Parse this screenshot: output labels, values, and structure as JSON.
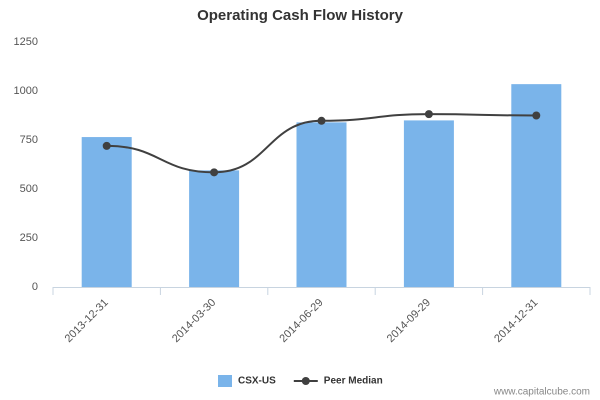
{
  "chart_data": {
    "type": "bar",
    "title": "Operating Cash Flow History",
    "categories": [
      "2013-12-31",
      "2014-03-30",
      "2014-06-29",
      "2014-09-29",
      "2014-12-31"
    ],
    "series": [
      {
        "name": "CSX-US",
        "type": "bar",
        "color": "#7ab4ea",
        "values": [
          765,
          595,
          840,
          850,
          1035
        ]
      },
      {
        "name": "Peer Median",
        "type": "line",
        "color": "#404040",
        "values": [
          720,
          585,
          848,
          882,
          875
        ]
      }
    ],
    "ylim": [
      0,
      1250
    ],
    "yticks": [
      0,
      250,
      500,
      750,
      1000,
      1250
    ],
    "grid": false,
    "legend": "bottom",
    "watermark": "www.capitalcube.com"
  }
}
